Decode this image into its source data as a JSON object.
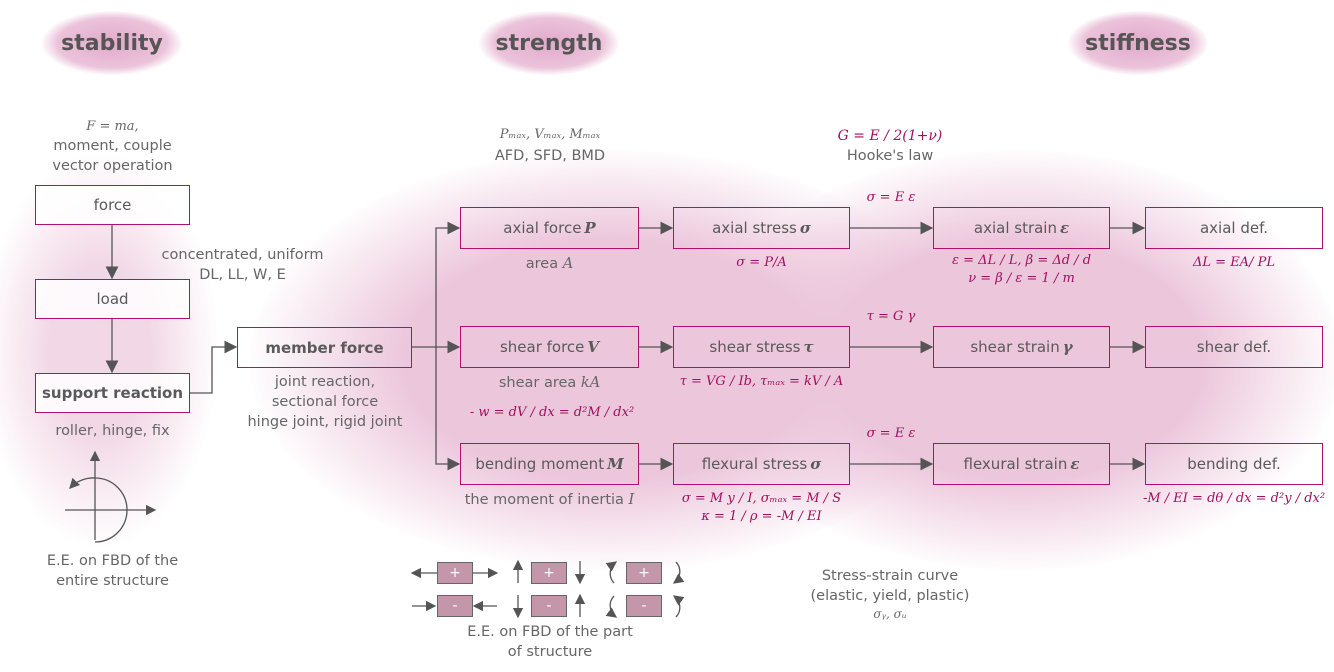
{
  "titles": {
    "stability": "stability",
    "strength": "strength",
    "stiffness": "stiffness"
  },
  "left": {
    "force_note": [
      "F = ma,",
      "moment, couple",
      "vector operation"
    ],
    "force": "force",
    "load_note": [
      "concentrated, uniform",
      "DL, LL, W, E"
    ],
    "load": "load",
    "support": "support reaction",
    "support_note": "roller, hinge, fix",
    "ee_note": [
      "E.E. on FBD of the",
      "entire structure"
    ]
  },
  "member": {
    "label": "member force",
    "note": [
      "joint reaction,",
      "sectional force",
      "hinge joint, rigid joint"
    ]
  },
  "top_notes": {
    "maxes": "Pₘₐₓ, Vₘₐₓ, Mₘₐₓ",
    "diagrams": "AFD, SFD, BMD",
    "g_formula": "G = E / 2(1+ν)",
    "hooke": "Hooke's law"
  },
  "rows": [
    {
      "force": "axial force ",
      "force_sym": "P",
      "force_note": "area ",
      "force_note_sym": "A",
      "stress": "axial stress ",
      "stress_sym": "σ",
      "stress_note": [
        "σ = P/A"
      ],
      "link": "σ = E ε",
      "strain": "axial strain ",
      "strain_sym": "ε",
      "strain_note": [
        "ε = ΔL / L, β = Δd / d",
        "ν = β / ε = 1 / m"
      ],
      "def": "axial def.",
      "def_note": "ΔL = EA/ PL"
    },
    {
      "force": "shear force ",
      "force_sym": "V",
      "force_note": "shear area ",
      "force_note_sym": "kA",
      "stress": "shear stress ",
      "stress_sym": "τ",
      "stress_note": [
        "τ = VG / Ib, τₘₐₓ = kV / A"
      ],
      "link": "τ = G γ",
      "strain": "shear strain ",
      "strain_sym": "γ",
      "strain_note": [],
      "def": "shear def.",
      "def_note": ""
    },
    {
      "force": "bending moment ",
      "force_sym": "M",
      "force_note": "the moment of inertia ",
      "force_note_sym": "I",
      "stress": "flexural stress ",
      "stress_sym": "σ",
      "stress_note": [
        "σ = M y / I, σₘₐₓ = M / S",
        "κ = 1 / ρ = -M / EI"
      ],
      "link": "σ = E ε",
      "strain": "flexural strain ",
      "strain_sym": "ε",
      "strain_note": [],
      "def": "bending def.",
      "def_note": "-M / EI = dθ / dx = d²y / dx²"
    }
  ],
  "load_relation": "- w = dV / dx = d²M / dx²",
  "sign": {
    "plus": "+",
    "minus": "-",
    "note": [
      "E.E. on FBD of the part",
      "of structure"
    ]
  },
  "stress_strain": {
    "lines": [
      "Stress-strain curve",
      "(elastic, yield, plastic)"
    ],
    "symbols": "σᵧ, σᵤ"
  },
  "colors": {
    "accent": "#b0106e",
    "formula": "#a0105f",
    "blob": "#ebc3da"
  }
}
